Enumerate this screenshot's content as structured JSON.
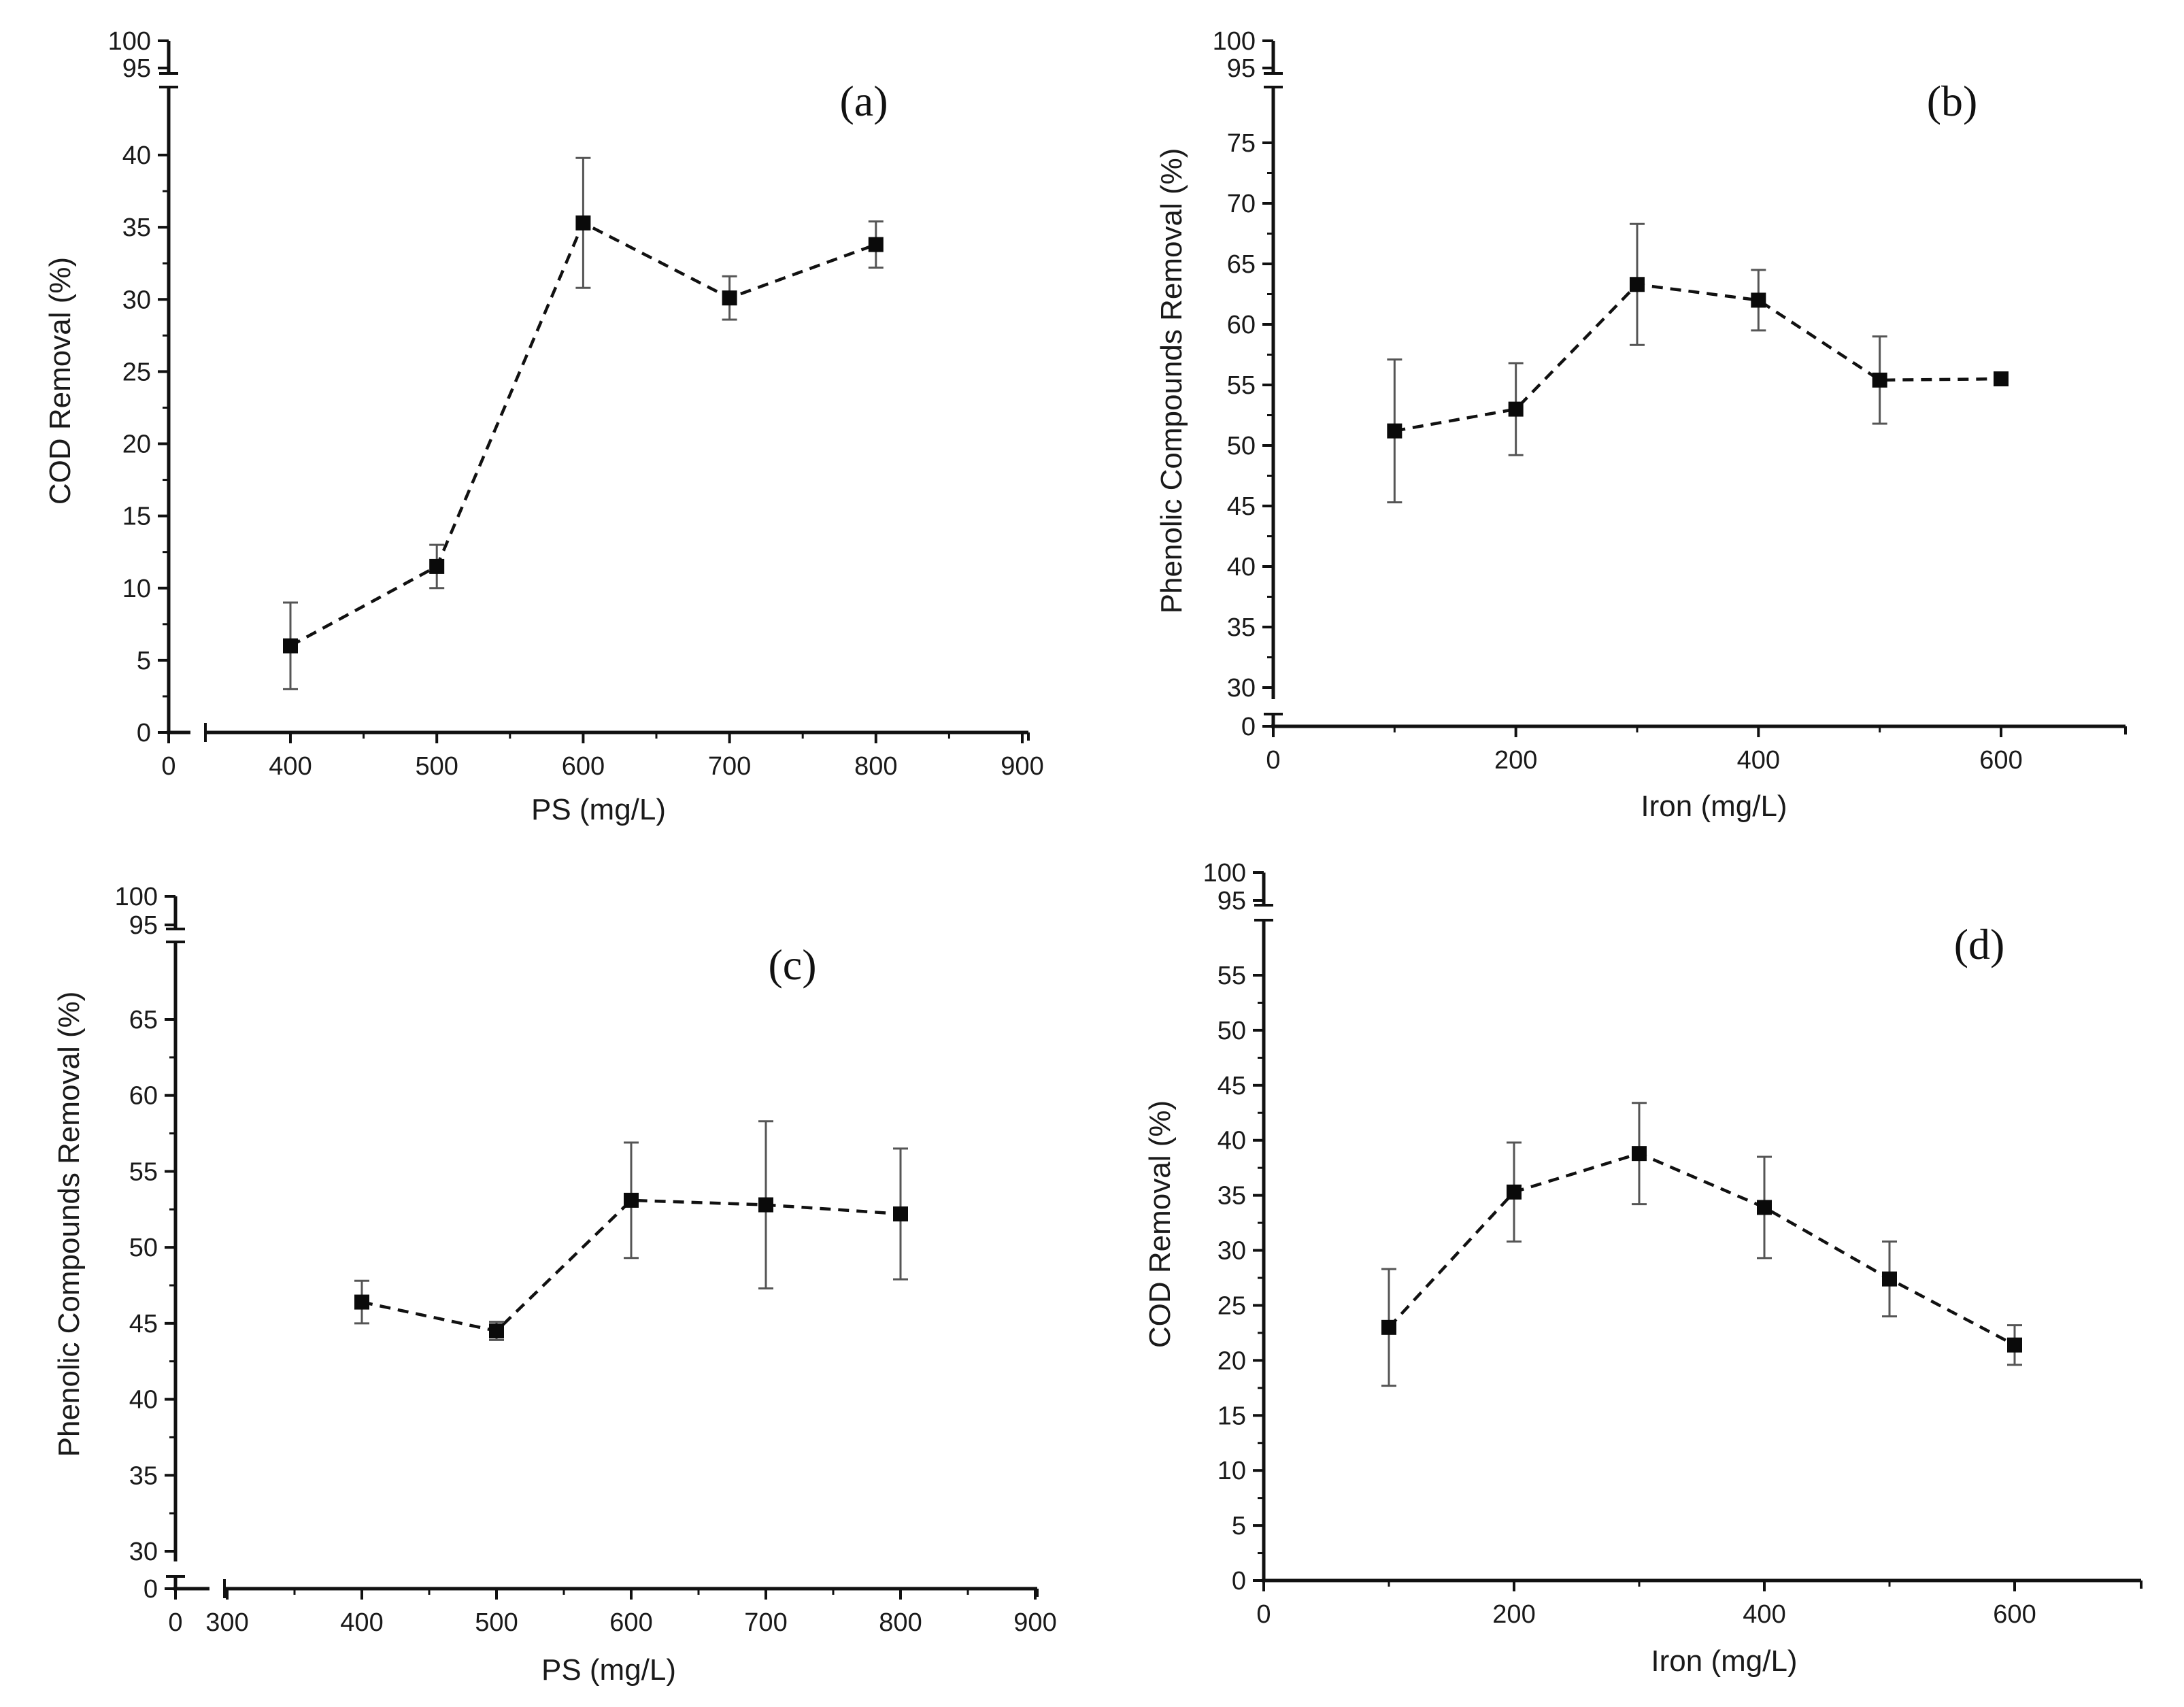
{
  "chart_data": [
    {
      "id": "a",
      "type": "scatter",
      "panel_label": "(a)",
      "xlabel": "PS (mg/L)",
      "ylabel": "COD Removal (%)",
      "x_ticks": [
        0,
        400,
        500,
        600,
        700,
        800,
        900
      ],
      "x_tick_labels": [
        "0",
        "400",
        "500",
        "600",
        "700",
        "800",
        "900"
      ],
      "y_lower_ticks": [
        0,
        5,
        10,
        15,
        20,
        25,
        30,
        35,
        40
      ],
      "y_lower_labels": [
        "0",
        "5",
        "10",
        "15",
        "20",
        "25",
        "30",
        "35",
        "40"
      ],
      "y_upper_labels": [
        "100",
        "95"
      ],
      "series": [
        {
          "name": "COD Removal",
          "x": [
            400,
            500,
            600,
            700,
            800
          ],
          "values": [
            6.0,
            11.5,
            35.3,
            30.1,
            33.8
          ],
          "errors": [
            3.0,
            1.5,
            4.5,
            1.5,
            1.6
          ]
        }
      ]
    },
    {
      "id": "b",
      "type": "scatter",
      "panel_label": "(b)",
      "xlabel": "Iron (mg/L)",
      "ylabel": "Phenolic Compounds Removal (%)",
      "x_ticks": [
        0,
        200,
        400,
        600
      ],
      "x_tick_labels": [
        "0",
        "200",
        "400",
        "600"
      ],
      "y_zero_label": "0",
      "y_lower_ticks": [
        30,
        35,
        40,
        45,
        50,
        55,
        60,
        65,
        70,
        75
      ],
      "y_lower_labels": [
        "30",
        "35",
        "40",
        "45",
        "50",
        "55",
        "60",
        "65",
        "70",
        "75"
      ],
      "y_upper_labels": [
        "100",
        "95"
      ],
      "series": [
        {
          "name": "Phenolic Compounds Removal",
          "x": [
            100,
            200,
            300,
            400,
            500,
            600
          ],
          "values": [
            51.2,
            53.0,
            63.3,
            62.0,
            55.4,
            55.5
          ],
          "errors": [
            5.9,
            3.8,
            5.0,
            2.5,
            3.6,
            0
          ]
        }
      ]
    },
    {
      "id": "c",
      "type": "scatter",
      "panel_label": "(c)",
      "xlabel": "PS (mg/L)",
      "ylabel": "Phenolic Compounds Removal (%)",
      "x_ticks": [
        0,
        300,
        400,
        500,
        600,
        700,
        800,
        900
      ],
      "x_tick_labels": [
        "0",
        "300",
        "400",
        "500",
        "600",
        "700",
        "800",
        "900"
      ],
      "y_zero_label": "0",
      "y_lower_ticks": [
        30,
        35,
        40,
        45,
        50,
        55,
        60,
        65
      ],
      "y_lower_labels": [
        "30",
        "35",
        "40",
        "45",
        "50",
        "55",
        "60",
        "65"
      ],
      "y_upper_labels": [
        "100",
        "95"
      ],
      "series": [
        {
          "name": "Phenolic Compounds Removal",
          "x": [
            400,
            500,
            600,
            700,
            800
          ],
          "values": [
            46.4,
            44.5,
            53.1,
            52.8,
            52.2
          ],
          "errors": [
            1.4,
            0.6,
            3.8,
            5.5,
            4.3
          ]
        }
      ]
    },
    {
      "id": "d",
      "type": "scatter",
      "panel_label": "(d)",
      "xlabel": "Iron (mg/L)",
      "ylabel": "COD Removal (%)",
      "x_ticks": [
        0,
        200,
        400,
        600
      ],
      "x_tick_labels": [
        "0",
        "200",
        "400",
        "600"
      ],
      "y_lower_ticks": [
        0,
        5,
        10,
        15,
        20,
        25,
        30,
        35,
        40,
        45,
        50,
        55
      ],
      "y_lower_labels": [
        "0",
        "5",
        "10",
        "15",
        "20",
        "25",
        "30",
        "35",
        "40",
        "45",
        "50",
        "55"
      ],
      "y_upper_labels": [
        "100",
        "95"
      ],
      "series": [
        {
          "name": "COD Removal",
          "x": [
            100,
            200,
            300,
            400,
            500,
            600
          ],
          "values": [
            23.0,
            35.3,
            38.8,
            33.9,
            27.4,
            21.4
          ],
          "errors": [
            5.3,
            4.5,
            4.6,
            4.6,
            3.4,
            1.8
          ]
        }
      ]
    }
  ]
}
